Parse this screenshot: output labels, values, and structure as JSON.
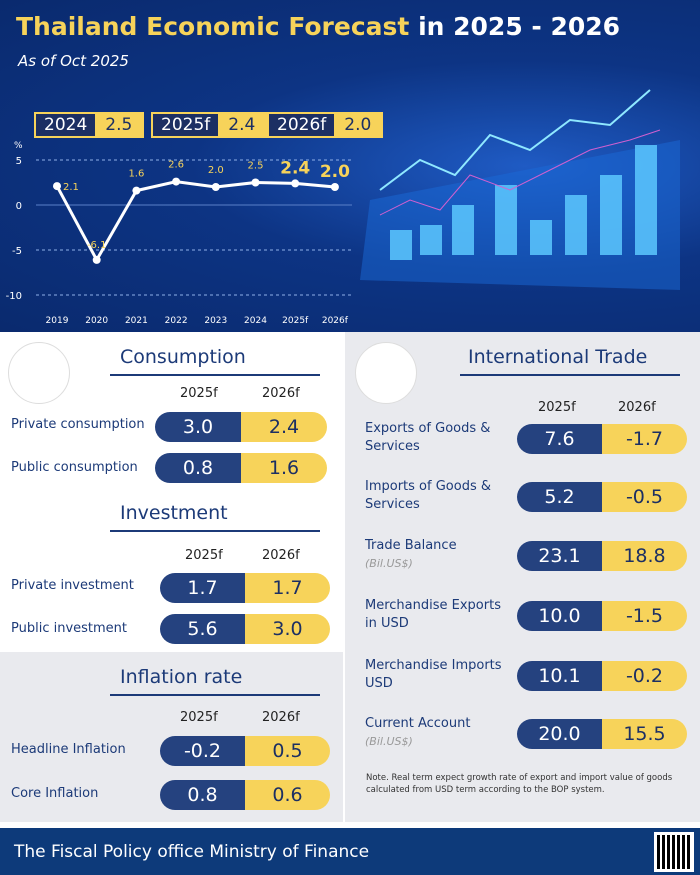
{
  "header": {
    "title_a": "Thailand Economic Forecast",
    "title_b": " in 2025 - 2026",
    "subtitle": "As of Oct 2025",
    "key_boxes": [
      {
        "year": "2024",
        "value": "2.5"
      },
      {
        "year": "2025f",
        "value": "2.4"
      },
      {
        "year": "2026f",
        "value": "2.0"
      }
    ]
  },
  "chart_data": {
    "type": "line",
    "xlabel": "",
    "ylabel": "%",
    "ylim": [
      -10,
      5
    ],
    "yticks": [
      5,
      0,
      -5,
      -10
    ],
    "categories": [
      "2019",
      "2020",
      "2021",
      "2022",
      "2023",
      "2024",
      "2025f",
      "2026f"
    ],
    "values": [
      2.1,
      -6.1,
      1.6,
      2.6,
      2.0,
      2.5,
      2.4,
      2.0
    ],
    "labels": [
      "2.1",
      "-6.1",
      "1.6",
      "2.6",
      "2.0",
      "2.5",
      "2.4",
      "2.0"
    ],
    "grid": true,
    "line_color": "#ffffff",
    "label_color": "#f7d35a"
  },
  "columns": {
    "a": "2025f",
    "b": "2026f"
  },
  "consumption": {
    "title": "Consumption",
    "rows": [
      {
        "label": "Private consumption",
        "a": "3.0",
        "b": "2.4"
      },
      {
        "label": "Public consumption",
        "a": "0.8",
        "b": "1.6"
      }
    ]
  },
  "investment": {
    "title": "Investment",
    "rows": [
      {
        "label": "Private investment",
        "a": "1.7",
        "b": "1.7"
      },
      {
        "label": "Public investment",
        "a": "5.6",
        "b": "3.0"
      }
    ]
  },
  "inflation": {
    "title": "Inflation rate",
    "rows": [
      {
        "label": "Headline Inflation",
        "a": "-0.2",
        "b": "0.5"
      },
      {
        "label": "Core Inflation",
        "a": "0.8",
        "b": "0.6"
      }
    ]
  },
  "trade": {
    "title": "International Trade",
    "rows": [
      {
        "label": "Exports of Goods & Services",
        "unit": "",
        "a": "7.6",
        "b": "-1.7"
      },
      {
        "label": "Imports of Goods & Services",
        "unit": "",
        "a": "5.2",
        "b": "-0.5"
      },
      {
        "label": "Trade Balance",
        "unit": "(Bil.US$)",
        "a": "23.1",
        "b": "18.8"
      },
      {
        "label": "Merchandise Exports in USD",
        "unit": "",
        "a": "10.0",
        "b": "-1.5"
      },
      {
        "label": "Merchandise Imports USD",
        "unit": "",
        "a": "10.1",
        "b": "-0.2"
      },
      {
        "label": "Current Account",
        "unit": "(Bil.US$)",
        "a": "20.0",
        "b": "15.5"
      }
    ],
    "note": "Note. Real term expect growth rate of export and import value of goods calculated from USD term according to the BOP system."
  },
  "footer": {
    "org": "The Fiscal Policy office Ministry of Finance"
  },
  "colors": {
    "navy": "#25427f",
    "yellow": "#f7d35a",
    "banner": "#0a2a6e"
  }
}
